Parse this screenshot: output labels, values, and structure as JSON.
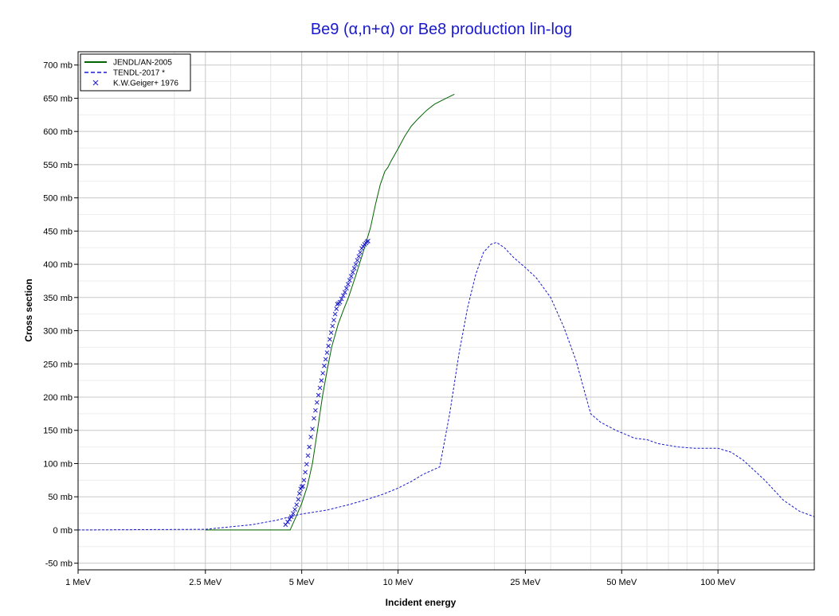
{
  "chart_data": {
    "type": "line",
    "title": "Be9 (α,n+α) or Be8 production lin-log",
    "xlabel": "Incident energy",
    "ylabel": "Cross section",
    "x_scale": "log",
    "xlim": [
      1,
      200
    ],
    "ylim": [
      -60,
      720
    ],
    "x_ticks": [
      {
        "value": 1,
        "label": "1 MeV"
      },
      {
        "value": 2.5,
        "label": "2.5 MeV"
      },
      {
        "value": 5,
        "label": "5 MeV"
      },
      {
        "value": 10,
        "label": "10 MeV"
      },
      {
        "value": 25,
        "label": "25 MeV"
      },
      {
        "value": 50,
        "label": "50 MeV"
      },
      {
        "value": 100,
        "label": "100 MeV"
      }
    ],
    "y_ticks": [
      {
        "value": -50,
        "label": "-50 mb"
      },
      {
        "value": 0,
        "label": "0 mb"
      },
      {
        "value": 50,
        "label": "50 mb"
      },
      {
        "value": 100,
        "label": "100 mb"
      },
      {
        "value": 150,
        "label": "150 mb"
      },
      {
        "value": 200,
        "label": "200 mb"
      },
      {
        "value": 250,
        "label": "250 mb"
      },
      {
        "value": 300,
        "label": "300 mb"
      },
      {
        "value": 350,
        "label": "350 mb"
      },
      {
        "value": 400,
        "label": "400 mb"
      },
      {
        "value": 450,
        "label": "450 mb"
      },
      {
        "value": 500,
        "label": "500 mb"
      },
      {
        "value": 550,
        "label": "550 mb"
      },
      {
        "value": 600,
        "label": "600 mb"
      },
      {
        "value": 650,
        "label": "650 mb"
      },
      {
        "value": 700,
        "label": "700 mb"
      }
    ],
    "grid": true,
    "legend_position": "top-left",
    "title_color": "#1a1acc",
    "series": [
      {
        "name": "JENDL/AN-2005",
        "style": "solid",
        "color": "#006400",
        "points": [
          [
            2.5,
            0
          ],
          [
            4.6,
            0
          ],
          [
            4.8,
            20
          ],
          [
            5.0,
            40
          ],
          [
            5.2,
            65
          ],
          [
            5.4,
            100
          ],
          [
            5.6,
            150
          ],
          [
            5.8,
            200
          ],
          [
            6.0,
            240
          ],
          [
            6.2,
            275
          ],
          [
            6.5,
            310
          ],
          [
            6.8,
            335
          ],
          [
            7.0,
            350
          ],
          [
            7.4,
            385
          ],
          [
            7.8,
            420
          ],
          [
            8.2,
            455
          ],
          [
            8.5,
            490
          ],
          [
            8.8,
            520
          ],
          [
            9.1,
            540
          ],
          [
            9.3,
            546
          ],
          [
            9.5,
            555
          ],
          [
            10.0,
            574
          ],
          [
            10.5,
            593
          ],
          [
            11.0,
            608
          ],
          [
            11.6,
            620
          ],
          [
            12.3,
            632
          ],
          [
            13.0,
            641
          ],
          [
            14.0,
            649
          ],
          [
            15.0,
            656
          ]
        ]
      },
      {
        "name": "TENDL-2017 *",
        "style": "dashed",
        "color": "#1a1acc",
        "points": [
          [
            1,
            0
          ],
          [
            2.5,
            1
          ],
          [
            3.5,
            8
          ],
          [
            4.2,
            15
          ],
          [
            4.6,
            20
          ],
          [
            5.0,
            24
          ],
          [
            6.0,
            30
          ],
          [
            7.0,
            38
          ],
          [
            8.0,
            46
          ],
          [
            9.0,
            54
          ],
          [
            10.0,
            63
          ],
          [
            11.0,
            73
          ],
          [
            12.0,
            84
          ],
          [
            13.5,
            95
          ],
          [
            14.5,
            175
          ],
          [
            15.5,
            265
          ],
          [
            16.5,
            335
          ],
          [
            17.5,
            385
          ],
          [
            18.5,
            418
          ],
          [
            19.5,
            430
          ],
          [
            20.3,
            433
          ],
          [
            21.5,
            425
          ],
          [
            23.0,
            410
          ],
          [
            25.0,
            395
          ],
          [
            27.0,
            380
          ],
          [
            30.0,
            350
          ],
          [
            33.0,
            305
          ],
          [
            36.0,
            255
          ],
          [
            40.0,
            175
          ],
          [
            43.0,
            162
          ],
          [
            48.0,
            150
          ],
          [
            55.0,
            138
          ],
          [
            60.0,
            136
          ],
          [
            65.0,
            130
          ],
          [
            75.0,
            125
          ],
          [
            85.0,
            123
          ],
          [
            100.0,
            123
          ],
          [
            110.0,
            117
          ],
          [
            120.0,
            105
          ],
          [
            140.0,
            75
          ],
          [
            160.0,
            45
          ],
          [
            180.0,
            28
          ],
          [
            200.0,
            20
          ]
        ]
      },
      {
        "name": "K.W.Geiger+ 1976",
        "style": "cross",
        "color": "#1a1acc",
        "points": [
          [
            4.45,
            8
          ],
          [
            4.52,
            12
          ],
          [
            4.58,
            16
          ],
          [
            4.64,
            20
          ],
          [
            4.7,
            25
          ],
          [
            4.76,
            31
          ],
          [
            4.82,
            38
          ],
          [
            4.88,
            46
          ],
          [
            4.92,
            55
          ],
          [
            4.96,
            62
          ],
          [
            5.0,
            65
          ],
          [
            5.04,
            66
          ],
          [
            5.08,
            75
          ],
          [
            5.13,
            87
          ],
          [
            5.18,
            99
          ],
          [
            5.23,
            112
          ],
          [
            5.28,
            125
          ],
          [
            5.34,
            140
          ],
          [
            5.4,
            152
          ],
          [
            5.46,
            168
          ],
          [
            5.52,
            180
          ],
          [
            5.58,
            192
          ],
          [
            5.64,
            203
          ],
          [
            5.7,
            214
          ],
          [
            5.76,
            225
          ],
          [
            5.82,
            236
          ],
          [
            5.88,
            247
          ],
          [
            5.94,
            257
          ],
          [
            6.0,
            267
          ],
          [
            6.06,
            277
          ],
          [
            6.12,
            287
          ],
          [
            6.18,
            297
          ],
          [
            6.24,
            307
          ],
          [
            6.3,
            316
          ],
          [
            6.36,
            325
          ],
          [
            6.42,
            333
          ],
          [
            6.46,
            340
          ],
          [
            6.52,
            341
          ],
          [
            6.58,
            343
          ],
          [
            6.66,
            348
          ],
          [
            6.74,
            353
          ],
          [
            6.82,
            358
          ],
          [
            6.9,
            364
          ],
          [
            6.98,
            370
          ],
          [
            7.06,
            376
          ],
          [
            7.14,
            382
          ],
          [
            7.22,
            388
          ],
          [
            7.3,
            394
          ],
          [
            7.38,
            400
          ],
          [
            7.46,
            406
          ],
          [
            7.54,
            412
          ],
          [
            7.62,
            418
          ],
          [
            7.7,
            424
          ],
          [
            7.78,
            427
          ],
          [
            7.86,
            430
          ],
          [
            7.94,
            432
          ],
          [
            8.0,
            434
          ],
          [
            8.06,
            435
          ]
        ]
      }
    ]
  }
}
